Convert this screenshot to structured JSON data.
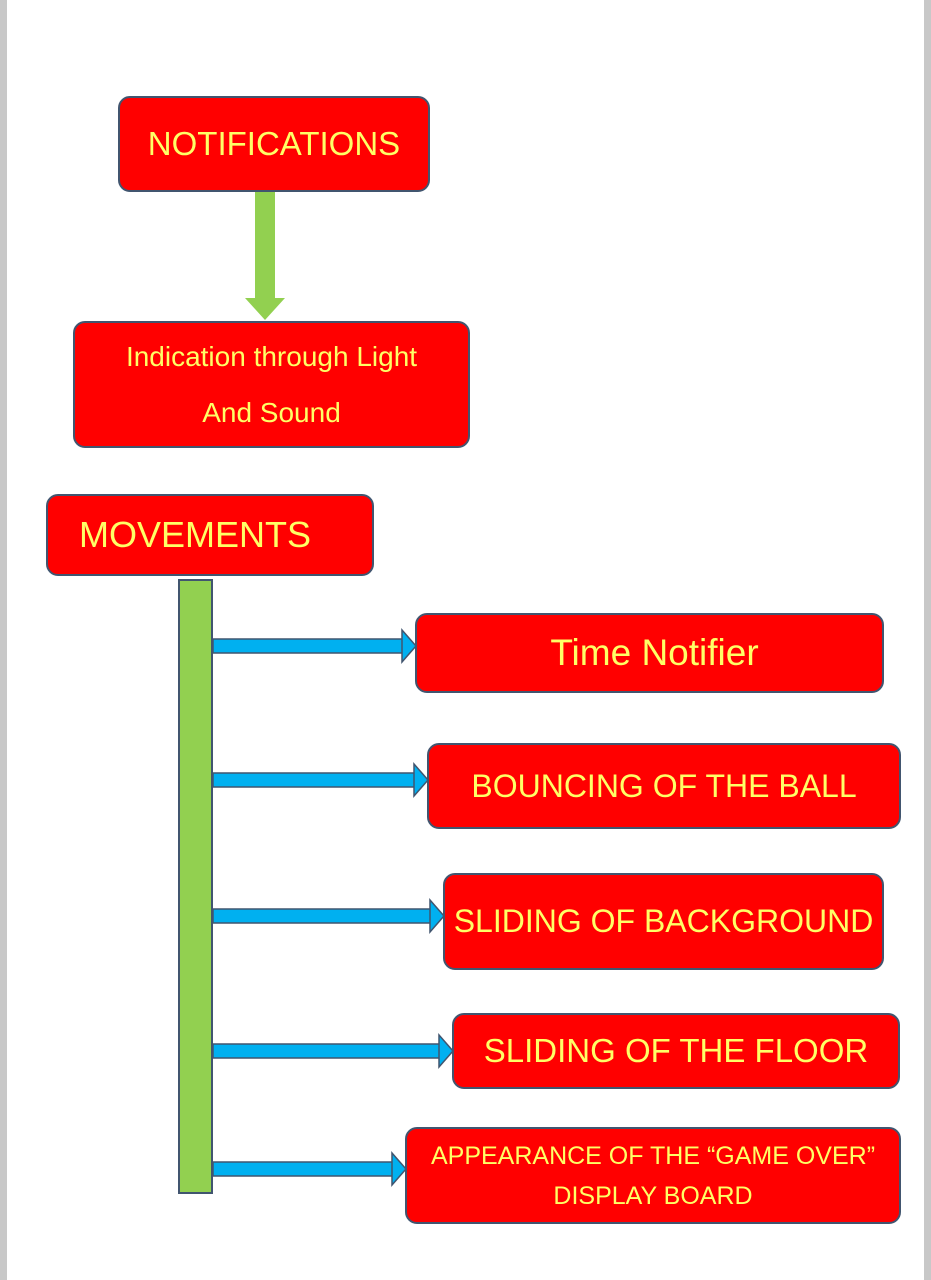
{
  "notifications": {
    "title": "NOTIFICATIONS",
    "child_lines": [
      "Indication through Light",
      "And Sound"
    ]
  },
  "movements": {
    "title": "MOVEMENTS",
    "items": [
      {
        "lines": [
          "Time Notifier"
        ]
      },
      {
        "lines": [
          "BOUNCING OF THE BALL"
        ]
      },
      {
        "lines": [
          "SLIDING OF BACKGROUND"
        ]
      },
      {
        "lines": [
          "SLIDING OF THE FLOOR"
        ]
      },
      {
        "lines": [
          "APPEARANCE OF THE “GAME OVER”",
          "DISPLAY BOARD"
        ]
      }
    ]
  },
  "colors": {
    "box_fill": "#ff0000",
    "box_text": "#ffff66",
    "box_border": "#41556f",
    "connector_green": "#92d050",
    "arrow_blue": "#00b0f0"
  }
}
